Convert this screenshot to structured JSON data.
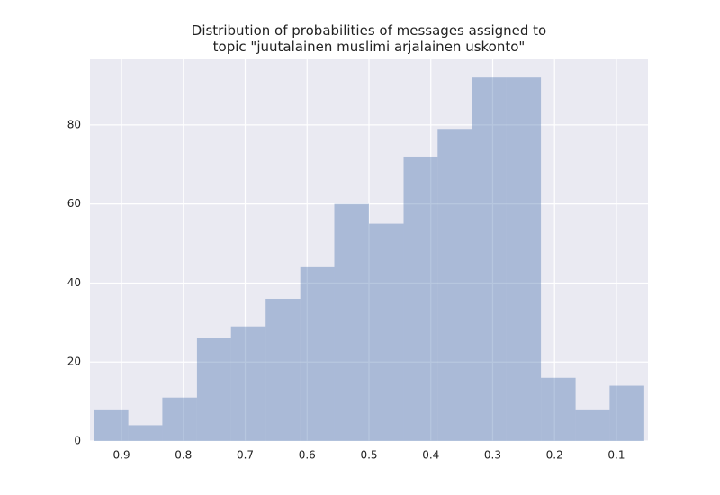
{
  "chart_data": {
    "type": "histogram",
    "title": "Distribution of probabilities of messages assigned to\ntopic \"juutalainen muslimi arjalainen uskonto\"",
    "bins": [
      0.945,
      0.889,
      0.834,
      0.778,
      0.723,
      0.667,
      0.611,
      0.556,
      0.5,
      0.444,
      0.389,
      0.333,
      0.278,
      0.222,
      0.166,
      0.111,
      0.055
    ],
    "counts": [
      8,
      4,
      11,
      26,
      29,
      36,
      44,
      60,
      55,
      72,
      79,
      92,
      92,
      16,
      8,
      14
    ],
    "color": "#4c72b0",
    "opacity": 0.4,
    "xlim": [
      0.951,
      0.049
    ],
    "xticks": [
      0.9,
      0.8,
      0.7,
      0.6,
      0.5,
      0.4,
      0.3,
      0.2,
      0.1
    ],
    "ylim": [
      0,
      96.6
    ],
    "yticks": [
      0,
      20,
      40,
      60,
      80
    ],
    "grid": true
  }
}
